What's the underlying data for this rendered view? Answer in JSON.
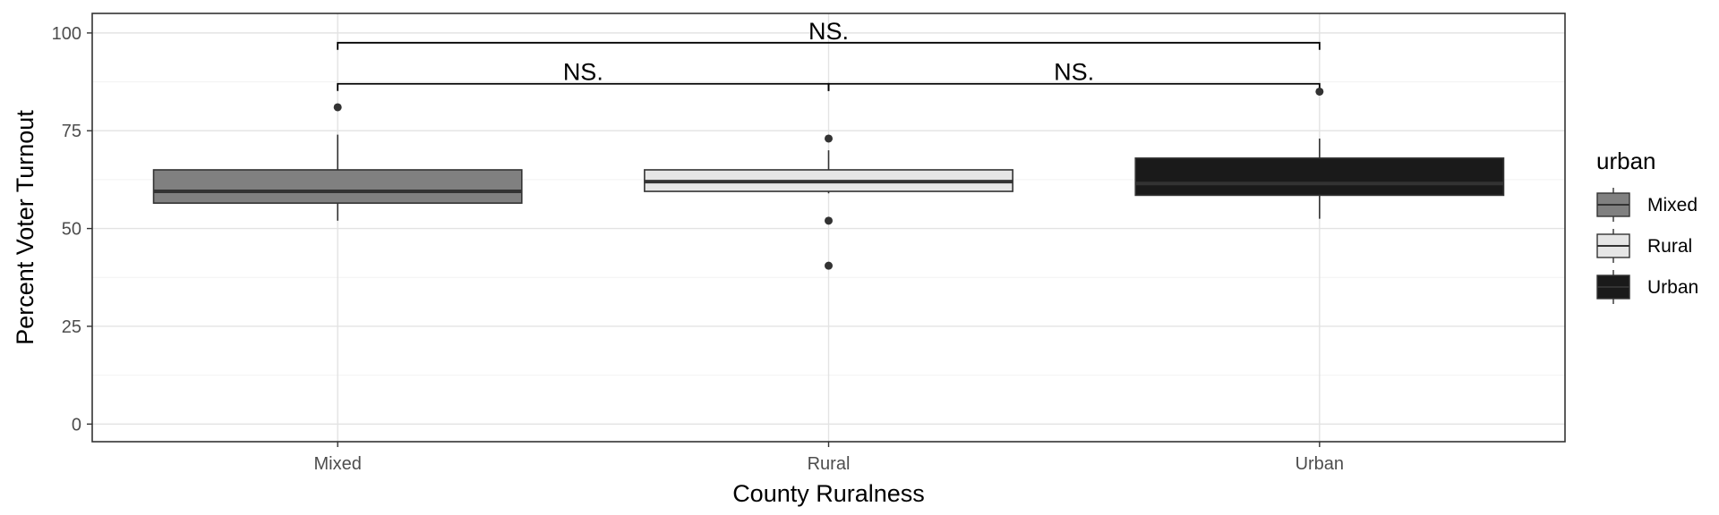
{
  "chart_data": {
    "type": "box",
    "xlabel": "County Ruralness",
    "ylabel": "Percent Voter Turnout",
    "ylim": [
      -4.5,
      105
    ],
    "yticks": [
      0,
      25,
      50,
      75,
      100
    ],
    "grid": true,
    "categories": [
      "Mixed",
      "Rural",
      "Urban"
    ],
    "boxes": [
      {
        "category": "Mixed",
        "whisker_low": 52,
        "q1": 56.5,
        "median": 59.5,
        "q3": 65,
        "whisker_high": 74,
        "outliers": [
          81
        ],
        "fill": "#808080",
        "median_color": "#333333"
      },
      {
        "category": "Rural",
        "whisker_low": 59,
        "q1": 59.5,
        "median": 62,
        "q3": 65,
        "whisker_high": 70,
        "outliers": [
          73,
          52,
          40.5
        ],
        "fill": "#e6e6e6",
        "median_color": "#333333"
      },
      {
        "category": "Urban",
        "whisker_low": 52.5,
        "q1": 58.5,
        "median": 61.5,
        "q3": 68,
        "whisker_high": 73,
        "outliers": [
          85
        ],
        "fill": "#1a1a1a",
        "median_color": "#333333"
      }
    ],
    "significance": [
      {
        "from": "Mixed",
        "to": "Rural",
        "label": "NS.",
        "y": 87
      },
      {
        "from": "Rural",
        "to": "Urban",
        "label": "NS.",
        "y": 87
      },
      {
        "from": "Mixed",
        "to": "Urban",
        "label": "NS.",
        "y": 97.5
      }
    ],
    "legend": {
      "title": "urban",
      "position": "right",
      "items": [
        {
          "label": "Mixed",
          "fill": "#808080"
        },
        {
          "label": "Rural",
          "fill": "#e6e6e6"
        },
        {
          "label": "Urban",
          "fill": "#1a1a1a"
        }
      ]
    }
  }
}
